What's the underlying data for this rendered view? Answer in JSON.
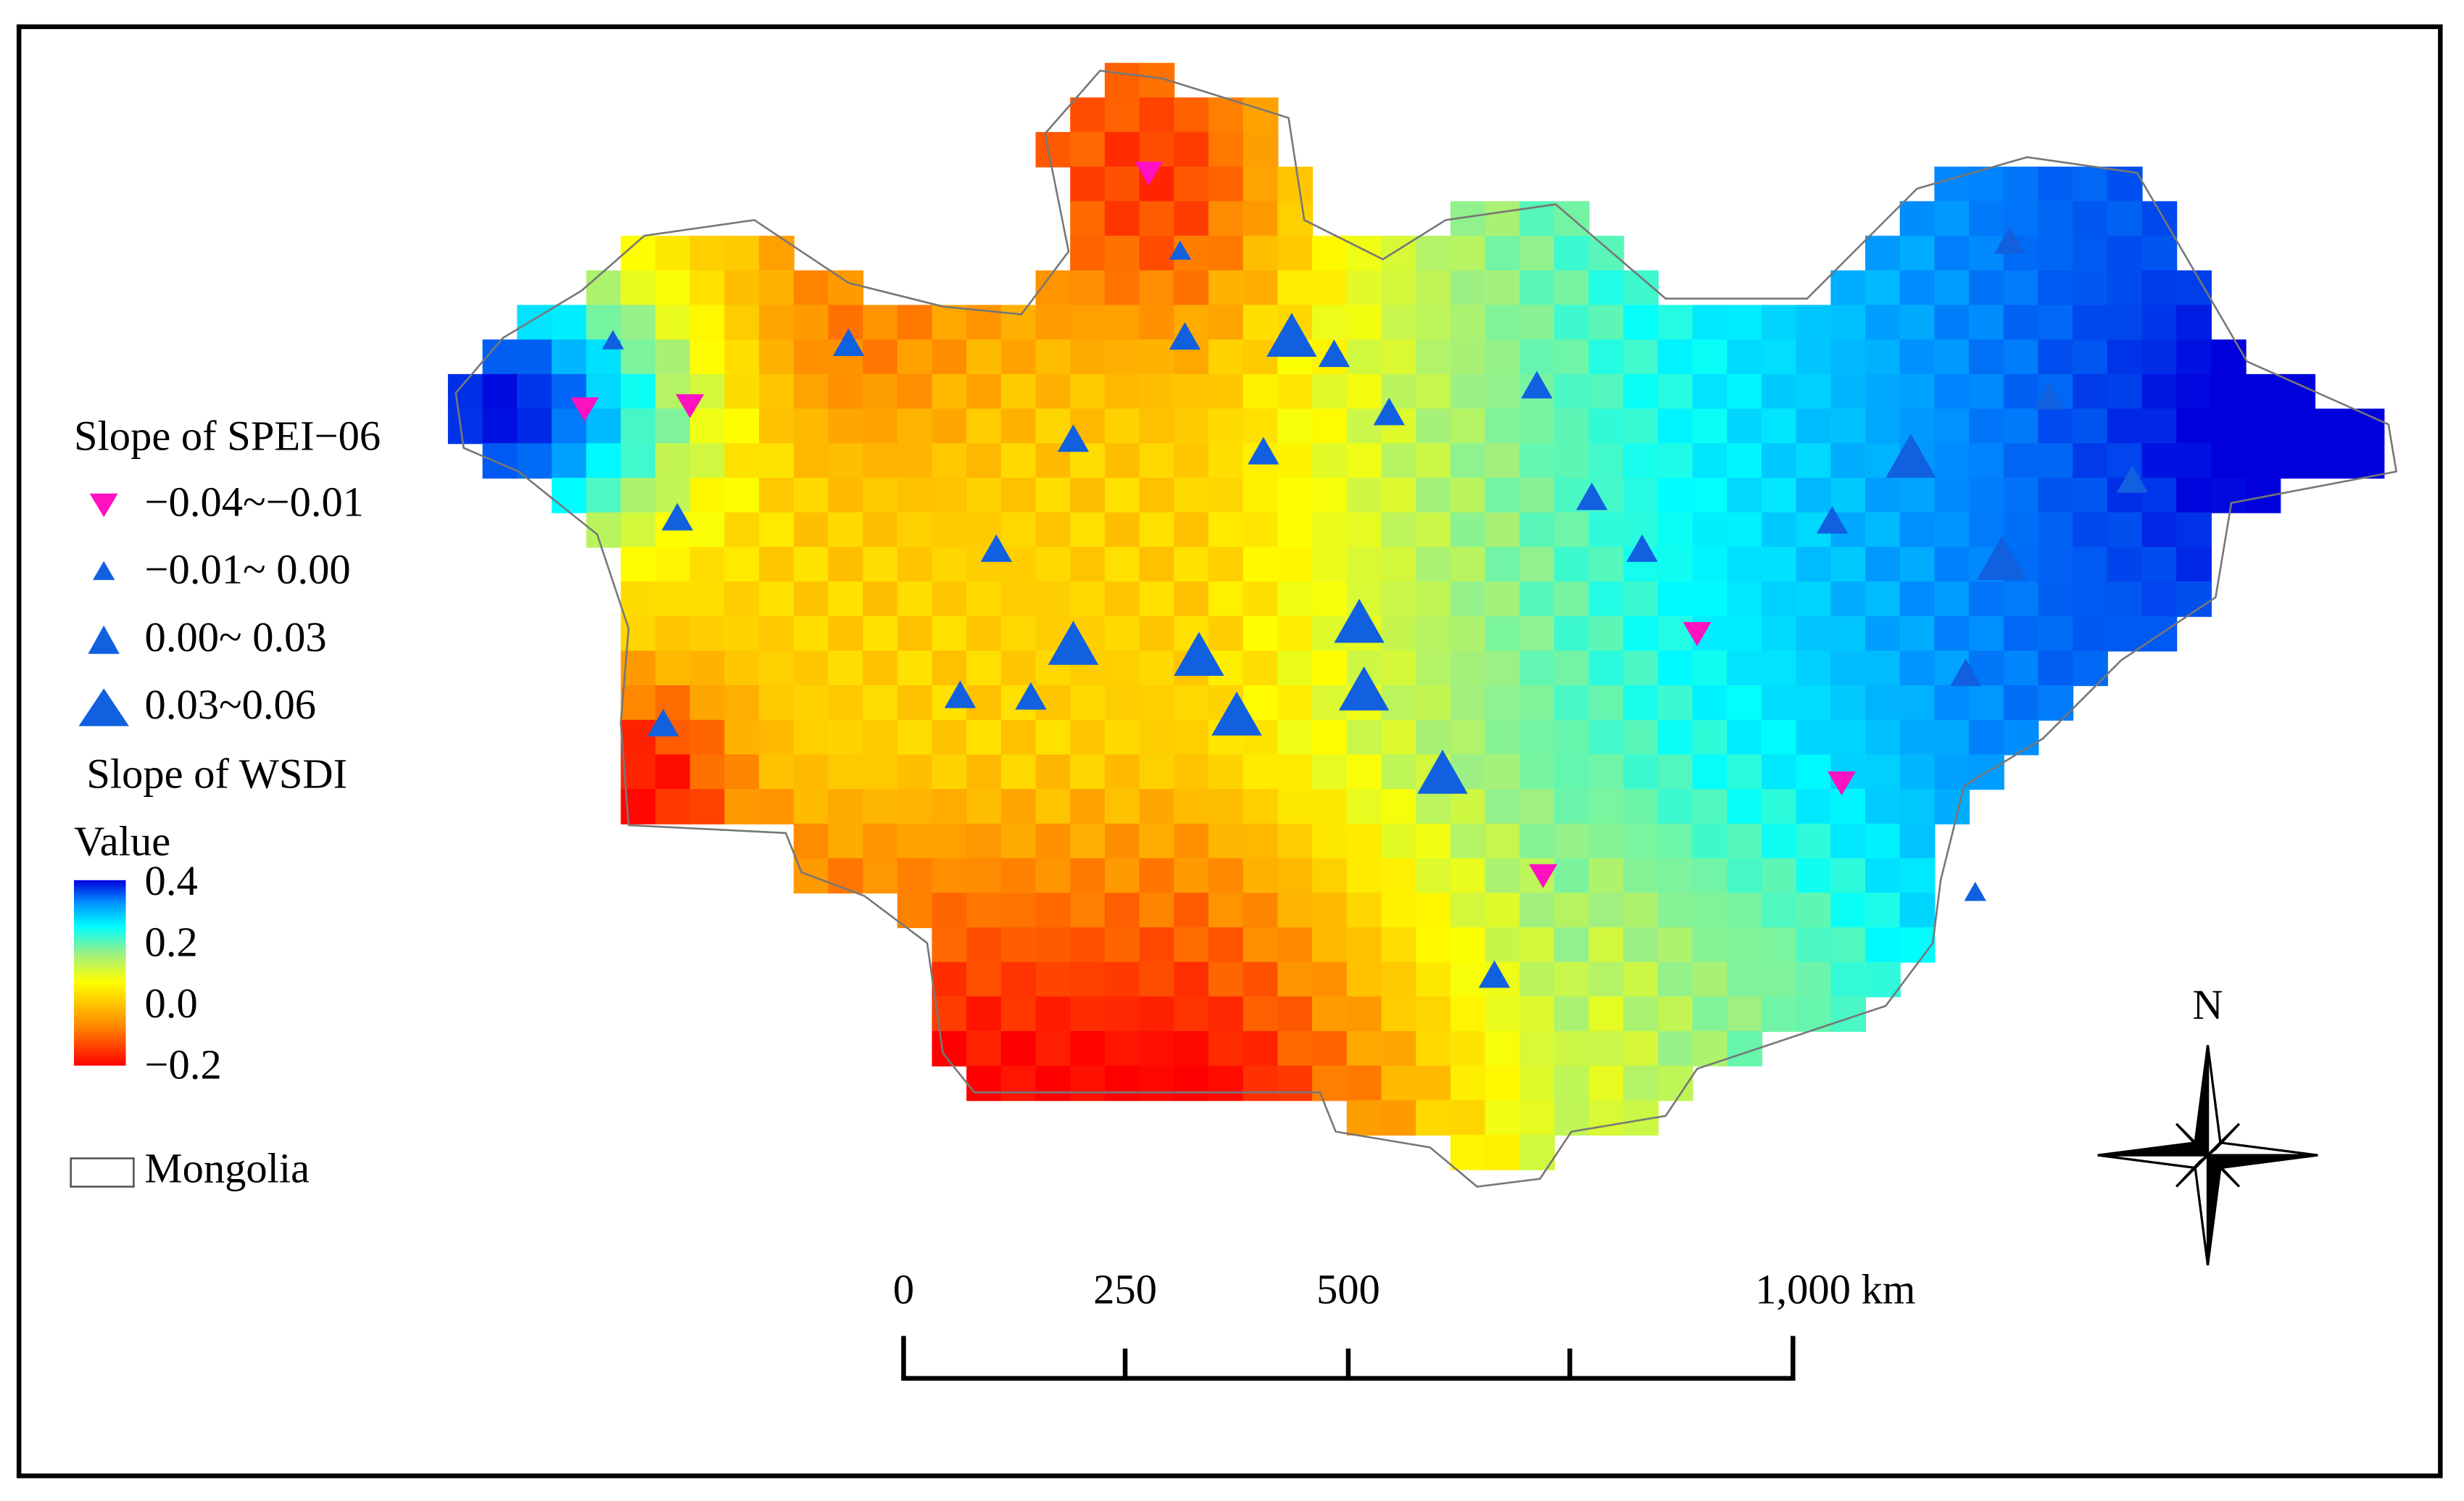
{
  "legend": {
    "spei_title": "Slope of SPEI−06",
    "spei_items": [
      "−0.04~−0.01",
      "−0.01~ 0.00",
      " 0.00~ 0.03",
      " 0.03~0.06"
    ],
    "wsdi_title": "Slope of WSDI",
    "value_label": "Value",
    "colorbar_labels": [
      "0.4",
      "0.2",
      "0.0",
      "−0.2"
    ],
    "boundary_label": "Mongolia"
  },
  "scale_bar": {
    "labels": [
      "0",
      "250",
      "500",
      "1,000 km"
    ]
  },
  "north_label": "N"
}
